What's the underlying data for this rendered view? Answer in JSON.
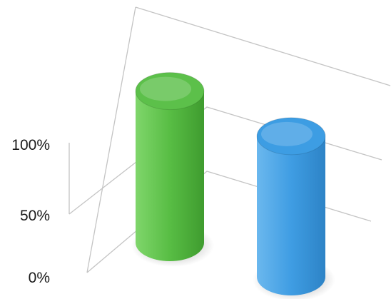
{
  "chart_data": {
    "type": "bar",
    "style": "3d-cylinder",
    "categories": [
      "",
      ""
    ],
    "values": [
      118,
      93
    ],
    "bar_colors": [
      "#5cc04a",
      "#3d9de3"
    ],
    "ylim": [
      0,
      150
    ],
    "yticks": [
      {
        "value": 0,
        "label": "0%"
      },
      {
        "value": 50,
        "label": "50%"
      },
      {
        "value": 100,
        "label": "100%"
      }
    ],
    "grid": true,
    "legend": "none",
    "title": "",
    "xlabel": "",
    "ylabel": ""
  }
}
